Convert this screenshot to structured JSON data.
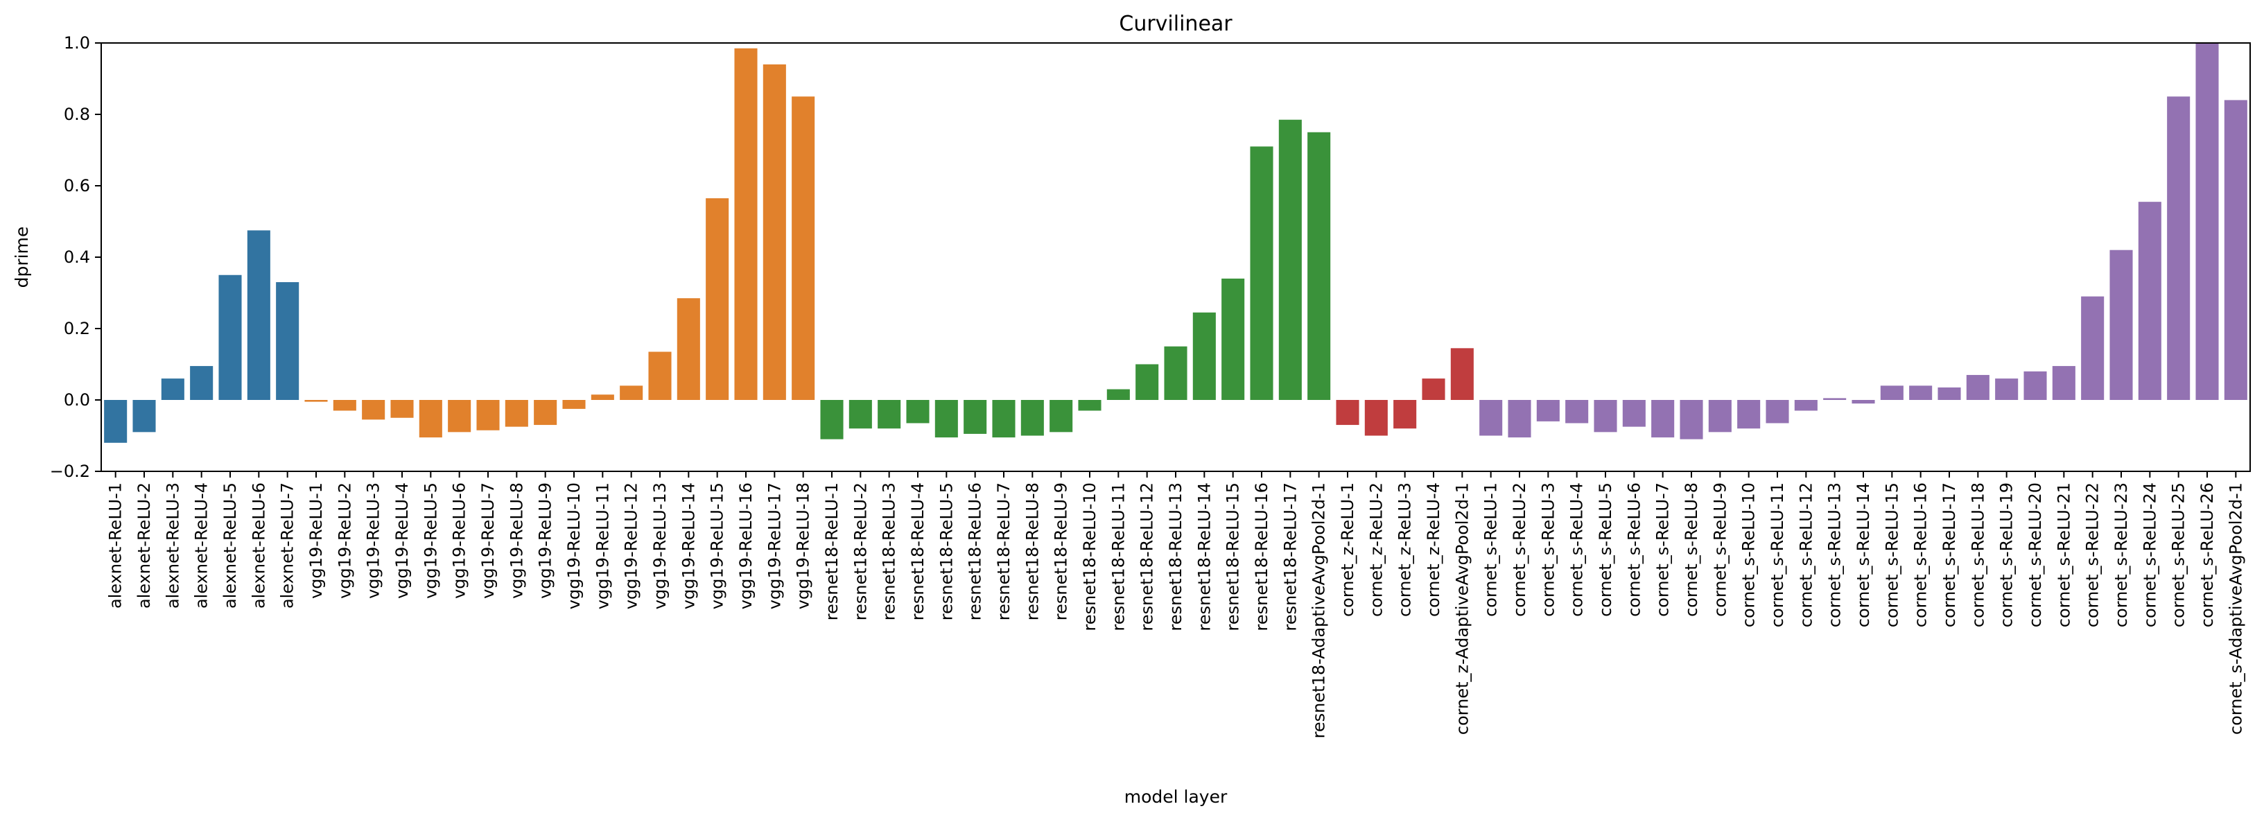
{
  "chart_data": {
    "type": "bar",
    "title": "Curvilinear",
    "xlabel": "model layer",
    "ylabel": "dprime",
    "ylim": [
      -0.2,
      1.0
    ],
    "yticks": [
      -0.2,
      0.0,
      0.2,
      0.4,
      0.6,
      0.8,
      1.0
    ],
    "ytick_labels": [
      "−0.2",
      "0.0",
      "0.2",
      "0.4",
      "0.6",
      "0.8",
      "1.0"
    ],
    "grid": false,
    "groups": [
      {
        "color": "#3274a1",
        "count": 7
      },
      {
        "color": "#e1812c",
        "count": 18
      },
      {
        "color": "#3a923a",
        "count": 18
      },
      {
        "color": "#c03d3e",
        "count": 5
      },
      {
        "color": "#9372b2",
        "count": 27
      }
    ],
    "categories": [
      "alexnet-ReLU-1",
      "alexnet-ReLU-2",
      "alexnet-ReLU-3",
      "alexnet-ReLU-4",
      "alexnet-ReLU-5",
      "alexnet-ReLU-6",
      "alexnet-ReLU-7",
      "vgg19-ReLU-1",
      "vgg19-ReLU-2",
      "vgg19-ReLU-3",
      "vgg19-ReLU-4",
      "vgg19-ReLU-5",
      "vgg19-ReLU-6",
      "vgg19-ReLU-7",
      "vgg19-ReLU-8",
      "vgg19-ReLU-9",
      "vgg19-ReLU-10",
      "vgg19-ReLU-11",
      "vgg19-ReLU-12",
      "vgg19-ReLU-13",
      "vgg19-ReLU-14",
      "vgg19-ReLU-15",
      "vgg19-ReLU-16",
      "vgg19-ReLU-17",
      "vgg19-ReLU-18",
      "resnet18-ReLU-1",
      "resnet18-ReLU-2",
      "resnet18-ReLU-3",
      "resnet18-ReLU-4",
      "resnet18-ReLU-5",
      "resnet18-ReLU-6",
      "resnet18-ReLU-7",
      "resnet18-ReLU-8",
      "resnet18-ReLU-9",
      "resnet18-ReLU-10",
      "resnet18-ReLU-11",
      "resnet18-ReLU-12",
      "resnet18-ReLU-13",
      "resnet18-ReLU-14",
      "resnet18-ReLU-15",
      "resnet18-ReLU-16",
      "resnet18-ReLU-17",
      "resnet18-AdaptiveAvgPool2d-1",
      "cornet_z-ReLU-1",
      "cornet_z-ReLU-2",
      "cornet_z-ReLU-3",
      "cornet_z-ReLU-4",
      "cornet_z-AdaptiveAvgPool2d-1",
      "cornet_s-ReLU-1",
      "cornet_s-ReLU-2",
      "cornet_s-ReLU-3",
      "cornet_s-ReLU-4",
      "cornet_s-ReLU-5",
      "cornet_s-ReLU-6",
      "cornet_s-ReLU-7",
      "cornet_s-ReLU-8",
      "cornet_s-ReLU-9",
      "cornet_s-ReLU-10",
      "cornet_s-ReLU-11",
      "cornet_s-ReLU-12",
      "cornet_s-ReLU-13",
      "cornet_s-ReLU-14",
      "cornet_s-ReLU-15",
      "cornet_s-ReLU-16",
      "cornet_s-ReLU-17",
      "cornet_s-ReLU-18",
      "cornet_s-ReLU-19",
      "cornet_s-ReLU-20",
      "cornet_s-ReLU-21",
      "cornet_s-ReLU-22",
      "cornet_s-ReLU-23",
      "cornet_s-ReLU-24",
      "cornet_s-ReLU-25",
      "cornet_s-ReLU-26",
      "cornet_s-AdaptiveAvgPool2d-1"
    ],
    "values": [
      -0.12,
      -0.09,
      0.06,
      0.095,
      0.35,
      0.475,
      0.33,
      -0.005,
      -0.03,
      -0.055,
      -0.05,
      -0.105,
      -0.09,
      -0.085,
      -0.075,
      -0.07,
      -0.025,
      0.015,
      0.04,
      0.135,
      0.285,
      0.565,
      0.985,
      0.94,
      0.85,
      -0.11,
      -0.08,
      -0.08,
      -0.065,
      -0.105,
      -0.095,
      -0.105,
      -0.1,
      -0.09,
      -0.03,
      0.03,
      0.1,
      0.15,
      0.245,
      0.34,
      0.71,
      0.785,
      0.75,
      -0.07,
      -0.1,
      -0.08,
      0.06,
      0.145,
      -0.1,
      -0.105,
      -0.06,
      -0.065,
      -0.09,
      -0.075,
      -0.105,
      -0.11,
      -0.09,
      -0.08,
      -0.065,
      -0.03,
      0.005,
      -0.01,
      0.04,
      0.04,
      0.035,
      0.07,
      0.06,
      0.08,
      0.095,
      0.29,
      0.42,
      0.555,
      0.85,
      1.0,
      0.84
    ]
  }
}
